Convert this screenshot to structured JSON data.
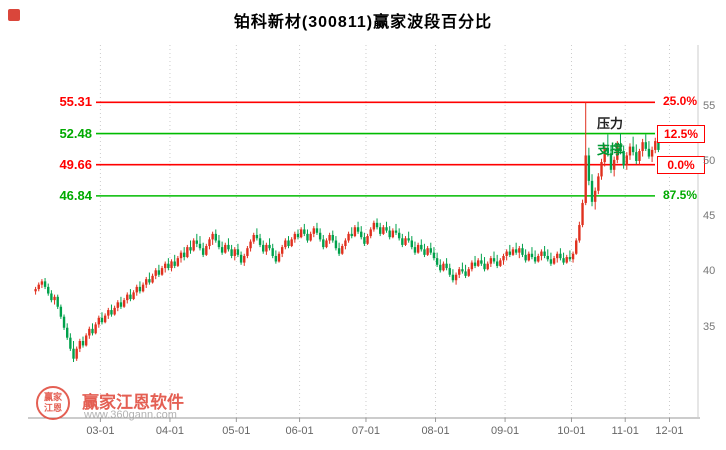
{
  "title": "铂科新材(300811)赢家波段百分比",
  "watermark": {
    "seal_text": "赢家江恩",
    "brand": "赢家江恩软件",
    "url": "www.360gann.com",
    "color": "#e14a3c"
  },
  "chart_data": {
    "type": "candlestick",
    "title": "铂科新材(300811)赢家波段百分比",
    "symbol": "铂科新材",
    "code": "300811",
    "ylim": [
      27,
      60.5
    ],
    "grid": "vertical-dotted",
    "legend": "none",
    "colors": {
      "up": "#e0301e",
      "down": "#00a14b",
      "grid": "#cccccc",
      "axis": "#999999",
      "frame": "#cccccc"
    },
    "y_axis": {
      "side": "right",
      "ticks": [
        "55",
        "50",
        "45",
        "40",
        "35"
      ],
      "tick_values": [
        55,
        50,
        45,
        40,
        35
      ]
    },
    "x_axis": {
      "labels": [
        "03-01",
        "04-01",
        "05-01",
        "06-01",
        "07-01",
        "08-01",
        "09-01",
        "10-01",
        "11-01",
        "12-01"
      ],
      "label_indices": [
        21,
        43,
        64,
        84,
        105,
        127,
        149,
        170,
        187,
        201
      ]
    },
    "levels": [
      {
        "price": 55.31,
        "price_label": "55.31",
        "price_color": "#ff0000",
        "line_color": "#ff0000",
        "pct_label": "25.0%",
        "pct_color": "#ff0000",
        "boxed": false
      },
      {
        "price": 52.48,
        "price_label": "52.48",
        "price_color": "#00aa00",
        "line_color": "#00bb00",
        "pct_label": "12.5%",
        "pct_color": "#ff0000",
        "boxed": true
      },
      {
        "price": 49.66,
        "price_label": "49.66",
        "price_color": "#ff0000",
        "line_color": "#ff0000",
        "pct_label": "0.0%",
        "pct_color": "#ff0000",
        "boxed": true
      },
      {
        "price": 46.84,
        "price_label": "46.84",
        "price_color": "#00aa00",
        "line_color": "#00bb00",
        "pct_label": "87.5%",
        "pct_color": "#00aa00",
        "boxed": false
      }
    ],
    "annotations": [
      {
        "text": "压力",
        "price": 53.35,
        "x": 597,
        "color": "#222222"
      },
      {
        "text": "支撑",
        "price": 51.0,
        "x": 597,
        "color": "#009933"
      }
    ],
    "candles": [
      [
        38.2,
        38.6,
        37.9,
        38.4
      ],
      [
        38.4,
        39.0,
        38.2,
        38.8
      ],
      [
        38.8,
        39.3,
        38.5,
        39.1
      ],
      [
        39.1,
        39.4,
        38.4,
        38.6
      ],
      [
        38.6,
        38.9,
        37.8,
        38.0
      ],
      [
        38.0,
        38.3,
        37.2,
        37.4
      ],
      [
        37.4,
        37.9,
        37.0,
        37.7
      ],
      [
        37.7,
        37.9,
        36.6,
        36.8
      ],
      [
        36.8,
        37.0,
        35.7,
        35.9
      ],
      [
        35.9,
        36.1,
        34.7,
        34.9
      ],
      [
        34.9,
        35.3,
        33.8,
        34.0
      ],
      [
        34.0,
        34.4,
        32.8,
        33.0
      ],
      [
        33.0,
        33.7,
        31.8,
        32.1
      ],
      [
        32.1,
        33.2,
        31.9,
        33.0
      ],
      [
        33.0,
        33.9,
        32.7,
        33.7
      ],
      [
        33.7,
        34.1,
        33.1,
        33.3
      ],
      [
        33.3,
        34.4,
        33.2,
        34.2
      ],
      [
        34.2,
        35.0,
        33.9,
        34.8
      ],
      [
        34.8,
        35.3,
        34.2,
        34.4
      ],
      [
        34.4,
        35.4,
        34.3,
        35.2
      ],
      [
        35.2,
        36.0,
        34.9,
        35.8
      ],
      [
        35.8,
        36.3,
        35.2,
        35.4
      ],
      [
        35.4,
        36.2,
        35.3,
        36.0
      ],
      [
        36.0,
        36.7,
        35.7,
        36.5
      ],
      [
        36.5,
        37.0,
        35.9,
        36.1
      ],
      [
        36.1,
        36.9,
        36.0,
        36.7
      ],
      [
        36.7,
        37.4,
        36.4,
        37.2
      ],
      [
        37.2,
        37.7,
        36.6,
        36.8
      ],
      [
        36.8,
        37.6,
        36.7,
        37.4
      ],
      [
        37.4,
        38.1,
        37.1,
        37.9
      ],
      [
        37.9,
        38.4,
        37.3,
        37.5
      ],
      [
        37.5,
        38.3,
        37.4,
        38.1
      ],
      [
        38.1,
        38.8,
        37.8,
        38.6
      ],
      [
        38.6,
        39.1,
        38.0,
        38.2
      ],
      [
        38.2,
        39.0,
        38.1,
        38.8
      ],
      [
        38.8,
        39.5,
        38.5,
        39.3
      ],
      [
        39.3,
        39.9,
        38.8,
        39.0
      ],
      [
        39.0,
        39.8,
        38.9,
        39.6
      ],
      [
        39.6,
        40.3,
        39.3,
        40.1
      ],
      [
        40.1,
        40.6,
        39.5,
        39.7
      ],
      [
        39.7,
        40.5,
        39.6,
        40.3
      ],
      [
        40.3,
        40.9,
        39.9,
        40.7
      ],
      [
        40.7,
        41.2,
        40.1,
        40.3
      ],
      [
        40.3,
        41.1,
        40.0,
        40.9
      ],
      [
        40.9,
        41.5,
        40.3,
        40.5
      ],
      [
        40.5,
        41.4,
        40.4,
        41.2
      ],
      [
        41.2,
        41.9,
        40.8,
        41.7
      ],
      [
        41.7,
        42.2,
        41.0,
        41.3
      ],
      [
        41.3,
        42.4,
        41.2,
        42.2
      ],
      [
        42.2,
        42.8,
        41.6,
        41.9
      ],
      [
        41.9,
        43.0,
        41.8,
        42.8
      ],
      [
        42.8,
        43.4,
        42.2,
        42.5
      ],
      [
        42.5,
        43.2,
        41.9,
        42.1
      ],
      [
        42.1,
        42.6,
        41.3,
        41.5
      ],
      [
        41.5,
        42.5,
        41.4,
        42.3
      ],
      [
        42.3,
        43.1,
        42.0,
        42.9
      ],
      [
        42.9,
        43.6,
        42.4,
        43.4
      ],
      [
        43.4,
        43.8,
        42.6,
        42.8
      ],
      [
        42.8,
        43.3,
        42.0,
        42.2
      ],
      [
        42.2,
        42.7,
        41.5,
        41.7
      ],
      [
        41.7,
        42.6,
        41.6,
        42.4
      ],
      [
        42.4,
        43.0,
        41.8,
        42.0
      ],
      [
        42.0,
        42.4,
        41.2,
        41.4
      ],
      [
        41.4,
        42.2,
        41.0,
        42.0
      ],
      [
        42.0,
        42.5,
        41.3,
        41.5
      ],
      [
        41.5,
        41.8,
        40.6,
        40.8
      ],
      [
        40.8,
        41.6,
        40.5,
        41.4
      ],
      [
        41.4,
        42.3,
        41.2,
        42.1
      ],
      [
        42.1,
        42.9,
        41.8,
        42.7
      ],
      [
        42.7,
        43.5,
        42.5,
        43.3
      ],
      [
        43.3,
        43.9,
        42.8,
        43.0
      ],
      [
        43.0,
        43.4,
        42.2,
        42.4
      ],
      [
        42.4,
        42.8,
        41.6,
        41.8
      ],
      [
        41.8,
        42.6,
        41.5,
        42.4
      ],
      [
        42.4,
        43.0,
        41.9,
        42.1
      ],
      [
        42.1,
        42.5,
        41.2,
        41.4
      ],
      [
        41.4,
        41.9,
        40.7,
        40.9
      ],
      [
        40.9,
        41.8,
        40.8,
        41.6
      ],
      [
        41.6,
        42.4,
        41.3,
        42.2
      ],
      [
        42.2,
        43.0,
        42.0,
        42.8
      ],
      [
        42.8,
        43.2,
        42.1,
        42.3
      ],
      [
        42.3,
        43.1,
        42.2,
        42.9
      ],
      [
        42.9,
        43.6,
        42.6,
        43.4
      ],
      [
        43.4,
        43.8,
        42.9,
        43.1
      ],
      [
        43.1,
        44.0,
        43.0,
        43.8
      ],
      [
        43.8,
        44.3,
        43.2,
        43.4
      ],
      [
        43.4,
        43.8,
        42.6,
        42.8
      ],
      [
        42.8,
        43.6,
        42.7,
        43.4
      ],
      [
        43.4,
        44.1,
        43.1,
        43.9
      ],
      [
        43.9,
        44.4,
        43.3,
        43.5
      ],
      [
        43.5,
        43.9,
        42.7,
        42.9
      ],
      [
        42.9,
        43.3,
        42.0,
        42.2
      ],
      [
        42.2,
        43.0,
        42.1,
        42.8
      ],
      [
        42.8,
        43.5,
        42.5,
        43.3
      ],
      [
        43.3,
        43.7,
        42.6,
        42.8
      ],
      [
        42.8,
        43.2,
        41.9,
        42.1
      ],
      [
        42.1,
        42.6,
        41.4,
        41.6
      ],
      [
        41.6,
        42.5,
        41.5,
        42.3
      ],
      [
        42.3,
        43.0,
        42.0,
        42.8
      ],
      [
        42.8,
        43.6,
        42.6,
        43.4
      ],
      [
        43.4,
        44.0,
        43.0,
        43.2
      ],
      [
        43.2,
        44.2,
        43.1,
        44.0
      ],
      [
        44.0,
        44.5,
        43.4,
        43.6
      ],
      [
        43.6,
        44.1,
        42.9,
        43.1
      ],
      [
        43.1,
        43.5,
        42.3,
        42.5
      ],
      [
        42.5,
        43.4,
        42.4,
        43.2
      ],
      [
        43.2,
        44.0,
        43.0,
        43.8
      ],
      [
        43.8,
        44.6,
        43.6,
        44.4
      ],
      [
        44.4,
        44.8,
        43.8,
        44.0
      ],
      [
        44.0,
        44.4,
        43.2,
        43.4
      ],
      [
        43.4,
        44.2,
        43.3,
        44.0
      ],
      [
        44.0,
        44.5,
        43.5,
        43.7
      ],
      [
        43.7,
        44.1,
        42.9,
        43.1
      ],
      [
        43.1,
        43.9,
        43.0,
        43.7
      ],
      [
        43.7,
        44.3,
        43.3,
        43.5
      ],
      [
        43.5,
        43.9,
        42.8,
        43.0
      ],
      [
        43.0,
        43.4,
        42.2,
        42.4
      ],
      [
        42.4,
        43.2,
        42.3,
        43.0
      ],
      [
        43.0,
        43.6,
        42.6,
        42.8
      ],
      [
        42.8,
        43.2,
        42.0,
        42.2
      ],
      [
        42.2,
        42.7,
        41.5,
        41.7
      ],
      [
        41.7,
        42.6,
        41.6,
        42.4
      ],
      [
        42.4,
        42.9,
        41.8,
        42.0
      ],
      [
        42.0,
        42.5,
        41.3,
        41.5
      ],
      [
        41.5,
        42.3,
        41.4,
        42.1
      ],
      [
        42.1,
        42.6,
        41.5,
        41.7
      ],
      [
        41.7,
        42.2,
        41.0,
        41.2
      ],
      [
        41.2,
        41.7,
        40.4,
        40.6
      ],
      [
        40.6,
        41.1,
        39.9,
        40.1
      ],
      [
        40.1,
        40.9,
        40.0,
        40.7
      ],
      [
        40.7,
        41.2,
        40.1,
        40.3
      ],
      [
        40.3,
        40.7,
        39.5,
        39.7
      ],
      [
        39.7,
        40.2,
        39.0,
        39.2
      ],
      [
        39.2,
        39.9,
        38.8,
        39.7
      ],
      [
        39.7,
        40.4,
        39.4,
        40.2
      ],
      [
        40.2,
        40.8,
        39.8,
        40.0
      ],
      [
        40.0,
        40.6,
        39.4,
        39.6
      ],
      [
        39.6,
        40.4,
        39.5,
        40.2
      ],
      [
        40.2,
        41.0,
        40.0,
        40.8
      ],
      [
        40.8,
        41.4,
        40.3,
        40.5
      ],
      [
        40.5,
        41.2,
        40.4,
        41.0
      ],
      [
        41.0,
        41.6,
        40.5,
        40.7
      ],
      [
        40.7,
        41.3,
        40.0,
        40.2
      ],
      [
        40.2,
        40.9,
        40.1,
        40.7
      ],
      [
        40.7,
        41.4,
        40.4,
        41.2
      ],
      [
        41.2,
        41.8,
        40.7,
        40.9
      ],
      [
        40.9,
        41.5,
        40.3,
        40.5
      ],
      [
        40.5,
        41.2,
        40.4,
        41.0
      ],
      [
        41.0,
        41.6,
        40.6,
        41.4
      ],
      [
        41.4,
        42.0,
        41.0,
        41.8
      ],
      [
        41.8,
        42.4,
        41.3,
        41.5
      ],
      [
        41.5,
        42.2,
        41.4,
        42.0
      ],
      [
        42.0,
        42.6,
        41.5,
        41.7
      ],
      [
        41.7,
        42.3,
        41.2,
        42.1
      ],
      [
        42.1,
        42.5,
        41.3,
        41.5
      ],
      [
        41.5,
        42.0,
        40.8,
        41.0
      ],
      [
        41.0,
        41.8,
        40.9,
        41.6
      ],
      [
        41.6,
        42.2,
        41.1,
        41.3
      ],
      [
        41.3,
        41.9,
        40.7,
        40.9
      ],
      [
        40.9,
        41.6,
        40.8,
        41.4
      ],
      [
        41.4,
        42.0,
        41.0,
        41.8
      ],
      [
        41.8,
        42.3,
        41.2,
        41.4
      ],
      [
        41.4,
        42.0,
        40.9,
        41.1
      ],
      [
        41.1,
        41.7,
        40.5,
        40.7
      ],
      [
        40.7,
        41.4,
        40.6,
        41.2
      ],
      [
        41.2,
        41.8,
        40.8,
        41.6
      ],
      [
        41.6,
        42.1,
        41.0,
        41.2
      ],
      [
        41.2,
        41.7,
        40.6,
        40.8
      ],
      [
        40.8,
        41.5,
        40.7,
        41.3
      ],
      [
        41.3,
        41.9,
        40.9,
        41.1
      ],
      [
        41.1,
        41.8,
        40.8,
        41.6
      ],
      [
        41.6,
        43.0,
        41.5,
        42.8
      ],
      [
        42.8,
        44.5,
        42.6,
        44.2
      ],
      [
        44.2,
        46.5,
        44.0,
        46.2
      ],
      [
        46.2,
        55.31,
        46.0,
        50.5
      ],
      [
        50.5,
        51.2,
        47.8,
        48.2
      ],
      [
        48.2,
        48.8,
        45.9,
        46.3
      ],
      [
        46.3,
        47.6,
        45.6,
        47.3
      ],
      [
        47.3,
        48.9,
        47.0,
        48.6
      ],
      [
        48.6,
        50.2,
        48.3,
        49.9
      ],
      [
        49.9,
        51.5,
        49.5,
        51.2
      ],
      [
        51.2,
        52.4,
        50.4,
        50.7
      ],
      [
        50.7,
        51.3,
        48.9,
        49.2
      ],
      [
        49.2,
        50.4,
        48.6,
        50.1
      ],
      [
        50.1,
        51.8,
        49.8,
        51.5
      ],
      [
        51.5,
        52.48,
        50.6,
        50.9
      ],
      [
        50.9,
        51.4,
        49.3,
        49.6
      ],
      [
        49.6,
        50.8,
        49.2,
        50.5
      ],
      [
        50.5,
        51.6,
        50.1,
        51.3
      ],
      [
        51.3,
        52.2,
        50.5,
        50.8
      ],
      [
        50.8,
        51.5,
        49.7,
        50.0
      ],
      [
        50.0,
        51.1,
        49.66,
        50.9
      ],
      [
        50.9,
        52.0,
        50.4,
        51.7
      ],
      [
        51.7,
        52.4,
        50.9,
        51.1
      ],
      [
        51.1,
        51.8,
        50.2,
        50.4
      ],
      [
        50.4,
        51.3,
        49.9,
        51.0
      ],
      [
        51.0,
        52.1,
        50.7,
        51.8
      ],
      [
        51.8,
        52.3,
        50.8,
        51.0
      ]
    ]
  }
}
